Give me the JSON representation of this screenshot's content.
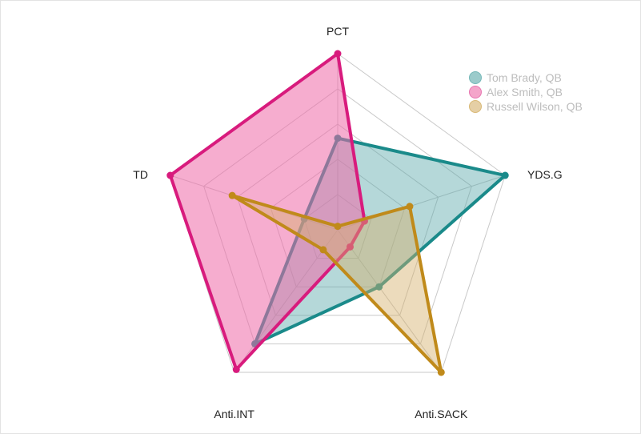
{
  "chart_data": {
    "type": "radar",
    "axes": [
      "PCT",
      "YDS.G",
      "Anti.SACK",
      "Anti.INT",
      "TD"
    ],
    "levels": 5,
    "grid": true,
    "legend_position": "top-right",
    "series": [
      {
        "name": "Tom Brady, QB",
        "values": [
          0.52,
          1.0,
          0.4,
          0.8,
          0.2
        ],
        "stroke": "#1a8a8a",
        "fill": "#5aa9aa",
        "fill_opacity": 0.45
      },
      {
        "name": "Alex Smith, QB",
        "values": [
          1.0,
          0.16,
          0.12,
          0.98,
          1.0
        ],
        "stroke": "#d81b7d",
        "fill": "#ee6aa8",
        "fill_opacity": 0.55
      },
      {
        "name": "Russell Wilson, QB",
        "values": [
          0.02,
          0.43,
          1.0,
          0.14,
          0.63
        ],
        "stroke": "#c08a1a",
        "fill": "#d4b06a",
        "fill_opacity": 0.45
      }
    ]
  }
}
